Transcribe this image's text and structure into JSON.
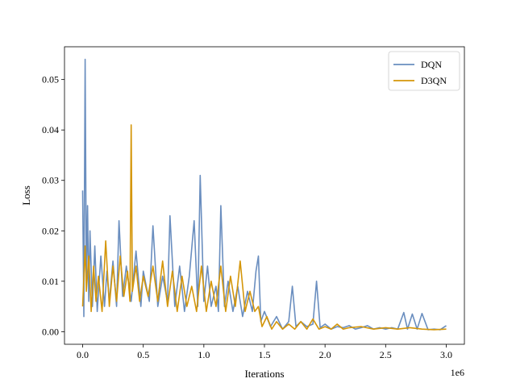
{
  "chart_data": {
    "type": "line",
    "title": "",
    "xlabel": "Iterations",
    "ylabel": "Loss",
    "x_offset_label": "1e6",
    "xlim": [
      -0.15,
      3.15
    ],
    "ylim": [
      -0.0025,
      0.0565
    ],
    "x_ticks": [
      0.0,
      0.5,
      1.0,
      1.5,
      2.0,
      2.5,
      3.0
    ],
    "x_tick_labels": [
      "0.0",
      "0.5",
      "1.0",
      "1.5",
      "2.0",
      "2.5",
      "3.0"
    ],
    "y_ticks": [
      0.0,
      0.01,
      0.02,
      0.03,
      0.04,
      0.05
    ],
    "y_tick_labels": [
      "0.00",
      "0.01",
      "0.02",
      "0.03",
      "0.04",
      "0.05"
    ],
    "legend_position": "top-right",
    "series": [
      {
        "name": "DQN",
        "color": "#6a8ebf",
        "x": [
          0.0,
          0.01,
          0.02,
          0.03,
          0.04,
          0.05,
          0.06,
          0.08,
          0.1,
          0.12,
          0.15,
          0.18,
          0.2,
          0.22,
          0.25,
          0.28,
          0.3,
          0.33,
          0.36,
          0.4,
          0.44,
          0.48,
          0.5,
          0.55,
          0.58,
          0.62,
          0.66,
          0.7,
          0.72,
          0.76,
          0.8,
          0.84,
          0.88,
          0.92,
          0.95,
          0.97,
          1.0,
          1.03,
          1.06,
          1.1,
          1.12,
          1.14,
          1.17,
          1.2,
          1.24,
          1.28,
          1.32,
          1.36,
          1.4,
          1.43,
          1.45,
          1.47,
          1.5,
          1.55,
          1.6,
          1.65,
          1.7,
          1.73,
          1.76,
          1.8,
          1.85,
          1.9,
          1.93,
          1.96,
          2.0,
          2.05,
          2.1,
          2.15,
          2.2,
          2.25,
          2.3,
          2.35,
          2.4,
          2.45,
          2.5,
          2.55,
          2.6,
          2.65,
          2.68,
          2.72,
          2.76,
          2.8,
          2.85,
          2.9,
          2.95,
          3.0
        ],
        "values": [
          0.028,
          0.003,
          0.054,
          0.01,
          0.025,
          0.006,
          0.02,
          0.005,
          0.017,
          0.004,
          0.015,
          0.005,
          0.012,
          0.006,
          0.014,
          0.005,
          0.022,
          0.007,
          0.013,
          0.006,
          0.016,
          0.005,
          0.012,
          0.006,
          0.021,
          0.005,
          0.011,
          0.006,
          0.023,
          0.005,
          0.013,
          0.004,
          0.011,
          0.022,
          0.005,
          0.031,
          0.006,
          0.013,
          0.005,
          0.009,
          0.004,
          0.025,
          0.005,
          0.01,
          0.004,
          0.009,
          0.003,
          0.008,
          0.004,
          0.012,
          0.015,
          0.002,
          0.004,
          0.001,
          0.003,
          0.0005,
          0.002,
          0.009,
          0.001,
          0.002,
          0.001,
          0.0015,
          0.01,
          0.0008,
          0.0015,
          0.0005,
          0.001,
          0.0008,
          0.0012,
          0.0005,
          0.0008,
          0.0012,
          0.0005,
          0.0008,
          0.0005,
          0.0008,
          0.0005,
          0.0038,
          0.0005,
          0.0035,
          0.0005,
          0.0036,
          0.0004,
          0.0005,
          0.0004,
          0.0012
        ]
      },
      {
        "name": "D3QN",
        "color": "#d4960a",
        "x": [
          0.0,
          0.02,
          0.03,
          0.05,
          0.07,
          0.09,
          0.11,
          0.13,
          0.16,
          0.19,
          0.22,
          0.25,
          0.28,
          0.31,
          0.34,
          0.37,
          0.39,
          0.4,
          0.41,
          0.44,
          0.47,
          0.5,
          0.54,
          0.58,
          0.62,
          0.66,
          0.7,
          0.74,
          0.78,
          0.82,
          0.86,
          0.9,
          0.94,
          0.98,
          1.02,
          1.06,
          1.1,
          1.14,
          1.18,
          1.22,
          1.26,
          1.3,
          1.34,
          1.38,
          1.42,
          1.45,
          1.48,
          1.52,
          1.56,
          1.6,
          1.65,
          1.7,
          1.75,
          1.8,
          1.85,
          1.9,
          1.95,
          2.0,
          2.05,
          2.1,
          2.15,
          2.2,
          2.3,
          2.4,
          2.5,
          2.6,
          2.7,
          2.8,
          2.9,
          3.0
        ],
        "values": [
          0.005,
          0.017,
          0.008,
          0.015,
          0.004,
          0.013,
          0.006,
          0.011,
          0.004,
          0.018,
          0.005,
          0.013,
          0.006,
          0.015,
          0.007,
          0.012,
          0.006,
          0.041,
          0.008,
          0.013,
          0.006,
          0.011,
          0.007,
          0.013,
          0.006,
          0.014,
          0.005,
          0.012,
          0.004,
          0.011,
          0.005,
          0.009,
          0.004,
          0.013,
          0.004,
          0.01,
          0.005,
          0.013,
          0.004,
          0.011,
          0.005,
          0.014,
          0.004,
          0.008,
          0.004,
          0.005,
          0.001,
          0.003,
          0.0005,
          0.002,
          0.0005,
          0.0015,
          0.0005,
          0.002,
          0.0005,
          0.0025,
          0.0005,
          0.001,
          0.0005,
          0.0015,
          0.0005,
          0.0008,
          0.001,
          0.0005,
          0.0008,
          0.0005,
          0.0008,
          0.0005,
          0.0004,
          0.0005
        ]
      }
    ]
  }
}
